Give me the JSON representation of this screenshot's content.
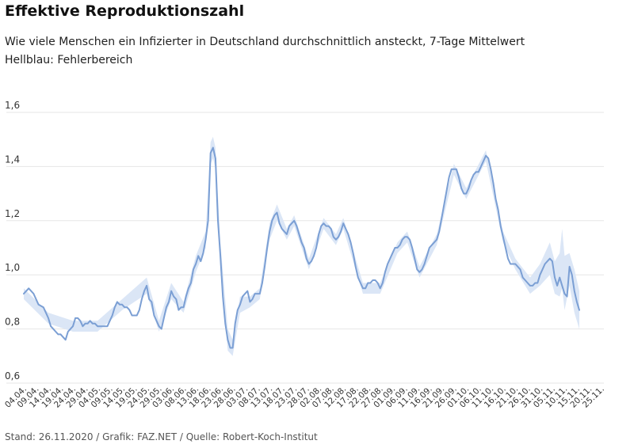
{
  "header": {
    "title": "Effektive Reproduktionszahl",
    "subtitle": "Wie viele Menschen ein Infizierter in Deutschland durchschnittlich ansteckt, 7-Tage Mittelwert",
    "subtitle2": "Hellblau: Fehlerbereich"
  },
  "footer": {
    "text": "Stand: 26.11.2020 / Grafik: FAZ.NET / Quelle: Robert-Koch-Institut"
  },
  "colors": {
    "line": "#7b9fd4",
    "band": "#dbe6f6"
  },
  "chart_data": {
    "type": "line",
    "ylim": [
      0.6,
      1.6
    ],
    "grid": true,
    "y_ticks": [
      {
        "value": 0.6,
        "label": "0,6"
      },
      {
        "value": 0.8,
        "label": "0,8"
      },
      {
        "value": 1.0,
        "label": "1,0"
      },
      {
        "value": 1.2,
        "label": "1,2"
      },
      {
        "value": 1.4,
        "label": "1,4"
      },
      {
        "value": 1.6,
        "label": "1,6"
      }
    ],
    "x_ticks": [
      "04.04.",
      "09.04.",
      "14.04.",
      "19.04.",
      "24.04.",
      "29.04.",
      "04.05.",
      "09.05.",
      "14.05.",
      "19.05.",
      "24.05.",
      "29.05.",
      "03.06.",
      "08.06.",
      "13.06.",
      "18.06.",
      "23.06.",
      "28.06.",
      "03.07.",
      "08.07.",
      "13.07.",
      "18.07.",
      "23.07.",
      "28.07.",
      "02.08.",
      "07.08.",
      "12.08.",
      "17.08.",
      "22.08.",
      "27.08.",
      "01.09.",
      "06.09.",
      "11.09.",
      "16.09.",
      "21.09.",
      "26.09.",
      "01.10.",
      "06.10.",
      "11.10.",
      "16.10.",
      "21.10.",
      "26.10.",
      "31.10.",
      "05.11.",
      "10.11.",
      "15.11.",
      "20.11.",
      "25.11."
    ],
    "series": [
      {
        "values": [
          [
            0,
            0.93
          ],
          [
            2,
            0.95
          ],
          [
            4,
            0.93
          ],
          [
            6,
            0.89
          ],
          [
            8,
            0.88
          ],
          [
            10,
            0.84
          ],
          [
            11,
            0.81
          ],
          [
            12,
            0.8
          ],
          [
            13,
            0.79
          ],
          [
            14,
            0.78
          ],
          [
            15,
            0.78
          ],
          [
            16,
            0.77
          ],
          [
            17,
            0.76
          ],
          [
            18,
            0.79
          ],
          [
            20,
            0.81
          ],
          [
            21,
            0.84
          ],
          [
            22,
            0.84
          ],
          [
            23,
            0.83
          ],
          [
            24,
            0.81
          ],
          [
            25,
            0.82
          ],
          [
            26,
            0.82
          ],
          [
            27,
            0.83
          ],
          [
            28,
            0.82
          ],
          [
            29,
            0.82
          ],
          [
            30,
            0.81
          ],
          [
            31,
            0.81
          ],
          [
            32,
            0.81
          ],
          [
            33,
            0.81
          ],
          [
            34,
            0.81
          ],
          [
            35,
            0.83
          ],
          [
            36,
            0.85
          ],
          [
            37,
            0.88
          ],
          [
            38,
            0.9
          ],
          [
            39,
            0.89
          ],
          [
            40,
            0.89
          ],
          [
            41,
            0.88
          ],
          [
            42,
            0.88
          ],
          [
            43,
            0.87
          ],
          [
            44,
            0.85
          ],
          [
            45,
            0.85
          ],
          [
            46,
            0.85
          ],
          [
            47,
            0.87
          ],
          [
            48,
            0.91
          ],
          [
            49,
            0.94
          ],
          [
            50,
            0.96
          ],
          [
            51,
            0.91
          ],
          [
            52,
            0.9
          ],
          [
            53,
            0.85
          ],
          [
            54,
            0.83
          ],
          [
            55,
            0.81
          ],
          [
            56,
            0.8
          ],
          [
            57,
            0.84
          ],
          [
            58,
            0.88
          ],
          [
            59,
            0.9
          ],
          [
            60,
            0.94
          ],
          [
            61,
            0.92
          ],
          [
            62,
            0.91
          ],
          [
            63,
            0.87
          ],
          [
            64,
            0.88
          ],
          [
            65,
            0.88
          ],
          [
            66,
            0.92
          ],
          [
            67,
            0.95
          ],
          [
            68,
            0.97
          ],
          [
            69,
            1.02
          ],
          [
            70,
            1.04
          ],
          [
            71,
            1.07
          ],
          [
            72,
            1.05
          ],
          [
            73,
            1.08
          ],
          [
            74,
            1.13
          ],
          [
            75,
            1.2
          ],
          [
            76,
            1.45
          ],
          [
            77,
            1.47
          ],
          [
            78,
            1.43
          ],
          [
            79,
            1.2
          ],
          [
            80,
            1.07
          ],
          [
            81,
            0.92
          ],
          [
            82,
            0.82
          ],
          [
            83,
            0.76
          ],
          [
            84,
            0.73
          ],
          [
            85,
            0.73
          ],
          [
            86,
            0.82
          ],
          [
            87,
            0.87
          ],
          [
            88,
            0.89
          ],
          [
            89,
            0.92
          ],
          [
            90,
            0.93
          ],
          [
            91,
            0.94
          ],
          [
            92,
            0.9
          ],
          [
            93,
            0.91
          ],
          [
            94,
            0.93
          ],
          [
            95,
            0.93
          ],
          [
            96,
            0.93
          ],
          [
            97,
            0.97
          ],
          [
            98,
            1.03
          ],
          [
            99,
            1.1
          ],
          [
            100,
            1.16
          ],
          [
            101,
            1.2
          ],
          [
            102,
            1.22
          ],
          [
            103,
            1.23
          ],
          [
            104,
            1.19
          ],
          [
            105,
            1.17
          ],
          [
            106,
            1.16
          ],
          [
            107,
            1.15
          ],
          [
            108,
            1.18
          ],
          [
            109,
            1.19
          ],
          [
            110,
            1.2
          ],
          [
            111,
            1.18
          ],
          [
            112,
            1.15
          ],
          [
            113,
            1.12
          ],
          [
            114,
            1.1
          ],
          [
            115,
            1.06
          ],
          [
            116,
            1.04
          ],
          [
            117,
            1.05
          ],
          [
            118,
            1.07
          ],
          [
            119,
            1.1
          ],
          [
            120,
            1.15
          ],
          [
            121,
            1.18
          ],
          [
            122,
            1.19
          ],
          [
            123,
            1.18
          ],
          [
            124,
            1.18
          ],
          [
            125,
            1.17
          ],
          [
            126,
            1.14
          ],
          [
            127,
            1.13
          ],
          [
            128,
            1.14
          ],
          [
            129,
            1.16
          ],
          [
            130,
            1.19
          ],
          [
            131,
            1.17
          ],
          [
            132,
            1.15
          ],
          [
            133,
            1.12
          ],
          [
            134,
            1.08
          ],
          [
            135,
            1.03
          ],
          [
            136,
            0.99
          ],
          [
            137,
            0.97
          ],
          [
            138,
            0.95
          ],
          [
            139,
            0.95
          ],
          [
            140,
            0.97
          ],
          [
            141,
            0.97
          ],
          [
            142,
            0.98
          ],
          [
            143,
            0.98
          ],
          [
            144,
            0.97
          ],
          [
            145,
            0.95
          ],
          [
            146,
            0.97
          ],
          [
            147,
            1.01
          ],
          [
            148,
            1.04
          ],
          [
            149,
            1.06
          ],
          [
            150,
            1.08
          ],
          [
            151,
            1.1
          ],
          [
            152,
            1.1
          ],
          [
            153,
            1.11
          ],
          [
            154,
            1.13
          ],
          [
            155,
            1.14
          ],
          [
            156,
            1.14
          ],
          [
            157,
            1.13
          ],
          [
            158,
            1.1
          ],
          [
            159,
            1.06
          ],
          [
            160,
            1.02
          ],
          [
            161,
            1.01
          ],
          [
            162,
            1.02
          ],
          [
            163,
            1.04
          ],
          [
            164,
            1.07
          ],
          [
            165,
            1.1
          ],
          [
            166,
            1.11
          ],
          [
            167,
            1.12
          ],
          [
            168,
            1.13
          ],
          [
            169,
            1.16
          ],
          [
            170,
            1.21
          ],
          [
            171,
            1.26
          ],
          [
            172,
            1.31
          ],
          [
            173,
            1.36
          ],
          [
            174,
            1.39
          ],
          [
            175,
            1.39
          ],
          [
            176,
            1.39
          ],
          [
            177,
            1.36
          ],
          [
            178,
            1.32
          ],
          [
            179,
            1.3
          ],
          [
            180,
            1.3
          ],
          [
            181,
            1.32
          ],
          [
            182,
            1.35
          ],
          [
            183,
            1.37
          ],
          [
            184,
            1.38
          ],
          [
            185,
            1.38
          ],
          [
            186,
            1.4
          ],
          [
            187,
            1.42
          ],
          [
            188,
            1.44
          ],
          [
            189,
            1.43
          ],
          [
            190,
            1.39
          ],
          [
            191,
            1.34
          ],
          [
            192,
            1.28
          ],
          [
            193,
            1.24
          ],
          [
            194,
            1.18
          ],
          [
            195,
            1.14
          ],
          [
            196,
            1.1
          ],
          [
            197,
            1.06
          ],
          [
            198,
            1.04
          ],
          [
            199,
            1.04
          ],
          [
            200,
            1.04
          ],
          [
            201,
            1.03
          ],
          [
            202,
            1.02
          ],
          [
            203,
            0.99
          ],
          [
            204,
            0.98
          ],
          [
            205,
            0.97
          ],
          [
            206,
            0.96
          ],
          [
            207,
            0.96
          ],
          [
            208,
            0.97
          ],
          [
            209,
            0.97
          ],
          [
            210,
            1.0
          ],
          [
            211,
            1.02
          ],
          [
            212,
            1.04
          ],
          [
            213,
            1.05
          ],
          [
            214,
            1.06
          ],
          [
            215,
            1.05
          ],
          [
            216,
            0.99
          ],
          [
            217,
            0.96
          ],
          [
            218,
            0.99
          ],
          [
            219,
            0.96
          ],
          [
            220,
            0.93
          ],
          [
            221,
            0.92
          ],
          [
            222,
            1.03
          ],
          [
            223,
            1.0
          ],
          [
            224,
            0.94
          ],
          [
            225,
            0.9
          ],
          [
            226,
            0.87
          ]
        ],
        "band": [
          [
            0,
            0.91,
            0.95
          ],
          [
            10,
            0.82,
            0.86
          ],
          [
            20,
            0.79,
            0.83
          ],
          [
            30,
            0.79,
            0.83
          ],
          [
            40,
            0.87,
            0.91
          ],
          [
            50,
            0.93,
            0.99
          ],
          [
            55,
            0.79,
            0.83
          ],
          [
            60,
            0.91,
            0.97
          ],
          [
            65,
            0.86,
            0.9
          ],
          [
            70,
            1.01,
            1.07
          ],
          [
            74,
            1.1,
            1.16
          ],
          [
            76,
            1.41,
            1.49
          ],
          [
            77,
            1.43,
            1.51
          ],
          [
            78,
            1.39,
            1.47
          ],
          [
            80,
            1.02,
            1.12
          ],
          [
            83,
            0.72,
            0.8
          ],
          [
            85,
            0.7,
            0.76
          ],
          [
            88,
            0.86,
            0.92
          ],
          [
            92,
            0.88,
            0.92
          ],
          [
            96,
            0.91,
            0.95
          ],
          [
            100,
            1.13,
            1.19
          ],
          [
            103,
            1.2,
            1.26
          ],
          [
            107,
            1.13,
            1.17
          ],
          [
            110,
            1.18,
            1.22
          ],
          [
            116,
            1.02,
            1.06
          ],
          [
            122,
            1.17,
            1.21
          ],
          [
            127,
            1.11,
            1.15
          ],
          [
            130,
            1.17,
            1.21
          ],
          [
            138,
            0.93,
            0.97
          ],
          [
            145,
            0.93,
            0.97
          ],
          [
            152,
            1.08,
            1.12
          ],
          [
            156,
            1.12,
            1.16
          ],
          [
            161,
            0.99,
            1.03
          ],
          [
            168,
            1.11,
            1.15
          ],
          [
            175,
            1.37,
            1.41
          ],
          [
            180,
            1.28,
            1.32
          ],
          [
            188,
            1.42,
            1.46
          ],
          [
            195,
            1.12,
            1.16
          ],
          [
            200,
            1.02,
            1.06
          ],
          [
            206,
            0.93,
            0.99
          ],
          [
            210,
            0.96,
            1.04
          ],
          [
            214,
            1.0,
            1.12
          ],
          [
            216,
            0.93,
            1.05
          ],
          [
            218,
            0.92,
            1.08
          ],
          [
            219,
            0.95,
            1.17
          ],
          [
            220,
            0.87,
            1.07
          ],
          [
            222,
            0.96,
            1.08
          ],
          [
            224,
            0.86,
            1.02
          ],
          [
            226,
            0.8,
            0.94
          ]
        ]
      }
    ]
  }
}
